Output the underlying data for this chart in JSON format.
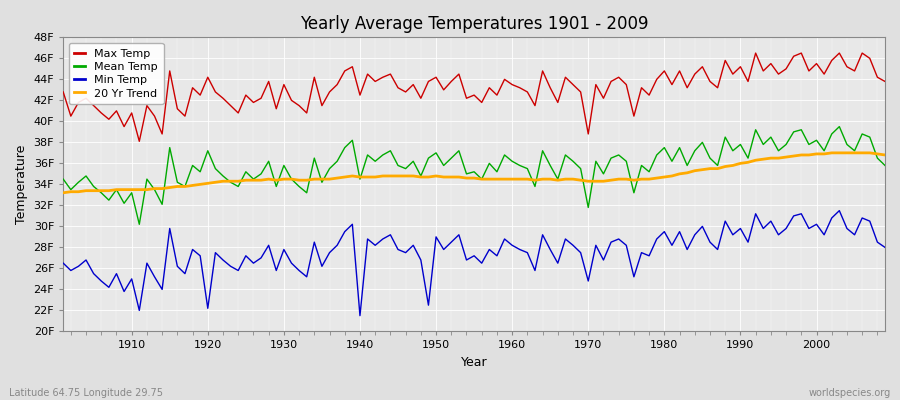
{
  "years": [
    1901,
    1902,
    1903,
    1904,
    1905,
    1906,
    1907,
    1908,
    1909,
    1910,
    1911,
    1912,
    1913,
    1914,
    1915,
    1916,
    1917,
    1918,
    1919,
    1920,
    1921,
    1922,
    1923,
    1924,
    1925,
    1926,
    1927,
    1928,
    1929,
    1930,
    1931,
    1932,
    1933,
    1934,
    1935,
    1936,
    1937,
    1938,
    1939,
    1940,
    1941,
    1942,
    1943,
    1944,
    1945,
    1946,
    1947,
    1948,
    1949,
    1950,
    1951,
    1952,
    1953,
    1954,
    1955,
    1956,
    1957,
    1958,
    1959,
    1960,
    1961,
    1962,
    1963,
    1964,
    1965,
    1966,
    1967,
    1968,
    1969,
    1970,
    1971,
    1972,
    1973,
    1974,
    1975,
    1976,
    1977,
    1978,
    1979,
    1980,
    1981,
    1982,
    1983,
    1984,
    1985,
    1986,
    1987,
    1988,
    1989,
    1990,
    1991,
    1992,
    1993,
    1994,
    1995,
    1996,
    1997,
    1998,
    1999,
    2000,
    2001,
    2002,
    2003,
    2004,
    2005,
    2006,
    2007,
    2008,
    2009
  ],
  "max_temps": [
    42.8,
    40.5,
    41.8,
    42.2,
    41.5,
    40.8,
    40.2,
    41.0,
    39.5,
    40.8,
    38.1,
    41.5,
    40.5,
    38.8,
    44.8,
    41.2,
    40.5,
    43.2,
    42.5,
    44.2,
    42.8,
    42.2,
    41.5,
    40.8,
    42.5,
    41.8,
    42.2,
    43.8,
    41.2,
    43.5,
    42.0,
    41.5,
    40.8,
    44.2,
    41.5,
    42.8,
    43.5,
    44.8,
    45.2,
    42.5,
    44.5,
    43.8,
    44.2,
    44.5,
    43.2,
    42.8,
    43.5,
    42.2,
    43.8,
    44.2,
    43.0,
    43.8,
    44.5,
    42.2,
    42.5,
    41.8,
    43.2,
    42.5,
    44.0,
    43.5,
    43.2,
    42.8,
    41.5,
    44.8,
    43.2,
    41.8,
    44.2,
    43.5,
    42.8,
    38.8,
    43.5,
    42.2,
    43.8,
    44.2,
    43.5,
    40.5,
    43.2,
    42.5,
    44.0,
    44.8,
    43.5,
    44.8,
    43.2,
    44.5,
    45.2,
    43.8,
    43.2,
    45.8,
    44.5,
    45.2,
    43.8,
    46.5,
    44.8,
    45.5,
    44.5,
    45.0,
    46.2,
    46.5,
    44.8,
    45.5,
    44.5,
    45.8,
    46.5,
    45.2,
    44.8,
    46.5,
    46.0,
    44.2,
    43.8
  ],
  "mean_temps": [
    34.5,
    33.5,
    34.2,
    34.8,
    33.8,
    33.2,
    32.5,
    33.5,
    32.2,
    33.2,
    30.2,
    34.5,
    33.5,
    32.1,
    37.5,
    34.2,
    33.8,
    35.8,
    35.2,
    37.2,
    35.5,
    34.8,
    34.2,
    33.8,
    35.2,
    34.5,
    35.0,
    36.2,
    33.8,
    35.8,
    34.5,
    33.8,
    33.2,
    36.5,
    34.2,
    35.5,
    36.2,
    37.5,
    38.2,
    34.5,
    36.8,
    36.2,
    36.8,
    37.2,
    35.8,
    35.5,
    36.2,
    34.8,
    36.5,
    37.0,
    35.8,
    36.5,
    37.2,
    35.0,
    35.2,
    34.5,
    36.0,
    35.2,
    36.8,
    36.2,
    35.8,
    35.5,
    33.8,
    37.2,
    35.8,
    34.5,
    36.8,
    36.2,
    35.5,
    31.8,
    36.2,
    35.0,
    36.5,
    36.8,
    36.2,
    33.2,
    35.8,
    35.2,
    36.8,
    37.5,
    36.2,
    37.5,
    35.8,
    37.2,
    38.0,
    36.5,
    35.8,
    38.5,
    37.2,
    37.8,
    36.5,
    39.2,
    37.8,
    38.5,
    37.2,
    37.8,
    39.0,
    39.2,
    37.8,
    38.2,
    37.2,
    38.8,
    39.5,
    37.8,
    37.2,
    38.8,
    38.5,
    36.5,
    35.8
  ],
  "min_temps": [
    26.5,
    25.8,
    26.2,
    26.8,
    25.5,
    24.8,
    24.2,
    25.5,
    23.8,
    25.0,
    22.0,
    26.5,
    25.2,
    24.0,
    29.8,
    26.2,
    25.5,
    27.8,
    27.2,
    22.2,
    27.5,
    26.8,
    26.2,
    25.8,
    27.2,
    26.5,
    27.0,
    28.2,
    25.8,
    27.8,
    26.5,
    25.8,
    25.2,
    28.5,
    26.2,
    27.5,
    28.2,
    29.5,
    30.2,
    21.5,
    28.8,
    28.2,
    28.8,
    29.2,
    27.8,
    27.5,
    28.2,
    26.8,
    22.5,
    29.0,
    27.8,
    28.5,
    29.2,
    26.8,
    27.2,
    26.5,
    27.8,
    27.2,
    28.8,
    28.2,
    27.8,
    27.5,
    25.8,
    29.2,
    27.8,
    26.5,
    28.8,
    28.2,
    27.5,
    24.8,
    28.2,
    26.8,
    28.5,
    28.8,
    28.2,
    25.2,
    27.5,
    27.2,
    28.8,
    29.5,
    28.2,
    29.5,
    27.8,
    29.2,
    30.0,
    28.5,
    27.8,
    30.5,
    29.2,
    29.8,
    28.5,
    31.2,
    29.8,
    30.5,
    29.2,
    29.8,
    31.0,
    31.2,
    29.8,
    30.2,
    29.2,
    30.8,
    31.5,
    29.8,
    29.2,
    30.8,
    30.5,
    28.5,
    28.0
  ],
  "trend_20yr": [
    33.2,
    33.3,
    33.3,
    33.4,
    33.4,
    33.4,
    33.4,
    33.5,
    33.5,
    33.5,
    33.5,
    33.5,
    33.6,
    33.6,
    33.7,
    33.8,
    33.8,
    33.9,
    34.0,
    34.1,
    34.2,
    34.3,
    34.3,
    34.3,
    34.4,
    34.4,
    34.4,
    34.5,
    34.4,
    34.5,
    34.5,
    34.4,
    34.4,
    34.5,
    34.5,
    34.5,
    34.6,
    34.7,
    34.8,
    34.7,
    34.7,
    34.7,
    34.8,
    34.8,
    34.8,
    34.8,
    34.8,
    34.7,
    34.7,
    34.8,
    34.7,
    34.7,
    34.7,
    34.6,
    34.6,
    34.5,
    34.5,
    34.5,
    34.5,
    34.5,
    34.5,
    34.5,
    34.4,
    34.5,
    34.5,
    34.4,
    34.5,
    34.5,
    34.4,
    34.3,
    34.3,
    34.3,
    34.4,
    34.5,
    34.5,
    34.4,
    34.5,
    34.5,
    34.6,
    34.7,
    34.8,
    35.0,
    35.1,
    35.3,
    35.4,
    35.5,
    35.5,
    35.7,
    35.8,
    36.0,
    36.1,
    36.3,
    36.4,
    36.5,
    36.5,
    36.6,
    36.7,
    36.8,
    36.8,
    36.9,
    36.9,
    37.0,
    37.0,
    37.0,
    37.0,
    37.0,
    37.0,
    36.9,
    36.8
  ],
  "title": "Yearly Average Temperatures 1901 - 2009",
  "xlabel": "Year",
  "ylabel": "Temperature",
  "ylim": [
    20,
    48
  ],
  "yticks": [
    20,
    22,
    24,
    26,
    28,
    30,
    32,
    34,
    36,
    38,
    40,
    42,
    44,
    46,
    48
  ],
  "ytick_labels": [
    "20F",
    "22F",
    "24F",
    "26F",
    "28F",
    "30F",
    "32F",
    "34F",
    "36F",
    "38F",
    "40F",
    "42F",
    "44F",
    "46F",
    "48F"
  ],
  "xlim": [
    1901,
    2009
  ],
  "xticks": [
    1910,
    1920,
    1930,
    1940,
    1950,
    1960,
    1970,
    1980,
    1990,
    2000
  ],
  "legend_labels": [
    "Max Temp",
    "Mean Temp",
    "Min Temp",
    "20 Yr Trend"
  ],
  "line_colors": [
    "#cc0000",
    "#00aa00",
    "#0000cc",
    "#ffaa00"
  ],
  "bg_color": "#e0e0e0",
  "plot_bg": "#e8e8e8",
  "grid_color": "#ffffff",
  "subtitle": "Latitude 64.75 Longitude 29.75",
  "watermark": "worldspecies.org"
}
